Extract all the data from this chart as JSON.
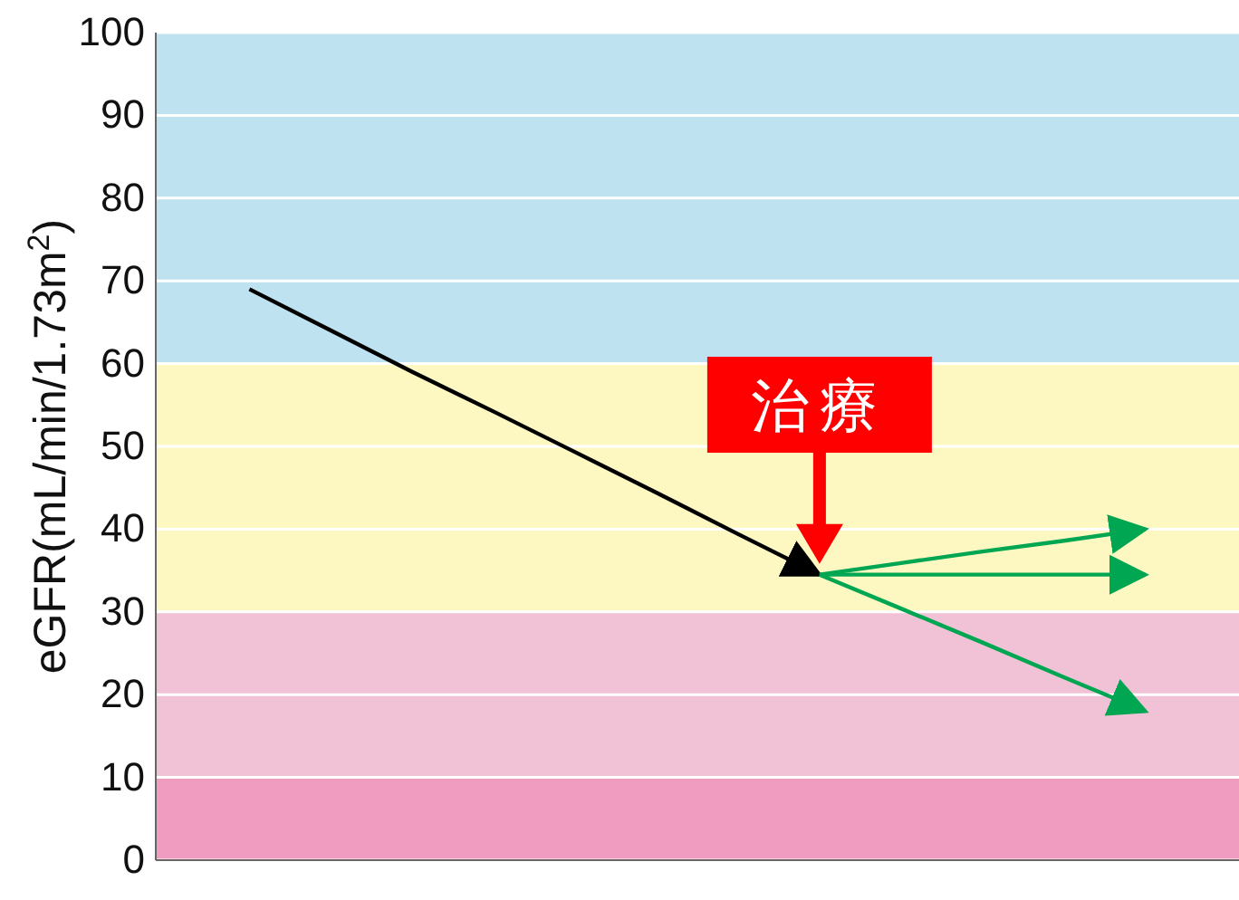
{
  "chart_data": {
    "type": "line",
    "ylabel": "eGFR(mL/min/1.73m$^{2}$)",
    "categories": [
      null,
      null,
      null,
      null,
      null,
      null,
      null,
      null,
      null,
      null,
      null,
      null,
      null,
      null
    ],
    "series": [
      {
        "color": "#000000",
        "values": [
          null,
          69,
          64,
          59,
          54.2,
          49.3,
          44.4,
          39.4,
          34.5,
          null,
          null,
          null,
          null,
          null
        ]
      },
      {
        "color": "#00a651",
        "values": [
          null,
          null,
          null,
          null,
          null,
          null,
          null,
          null,
          34.5,
          35.9,
          37.3,
          38.6,
          40,
          null
        ]
      },
      {
        "color": "#00a651",
        "values": [
          null,
          null,
          null,
          null,
          null,
          null,
          null,
          null,
          34.5,
          34.5,
          34.5,
          34.5,
          34.5,
          null
        ]
      },
      {
        "color": "#00a651",
        "values": [
          null,
          null,
          null,
          null,
          null,
          null,
          null,
          null,
          34.5,
          30.4,
          26.3,
          22.1,
          18,
          null
        ]
      }
    ],
    "ylim": [
      0,
      100
    ],
    "yticks": [
      0,
      10,
      20,
      30,
      40,
      50,
      60,
      70,
      80,
      90,
      100
    ],
    "grid": "y",
    "marker": "none",
    "line_style": "solid",
    "bands": [
      {
        "axis": "y",
        "from": 0,
        "to": 10,
        "color": "#f09cc1"
      },
      {
        "axis": "y",
        "from": 10,
        "to": 30,
        "color": "#f1c1d6"
      },
      {
        "axis": "y",
        "from": 30,
        "to": 60,
        "color": "#fdf8c2"
      },
      {
        "axis": "y",
        "from": 60,
        "to": 100,
        "color": "#bfe2f1"
      }
    ],
    "annotations": [
      "治療"
    ]
  }
}
